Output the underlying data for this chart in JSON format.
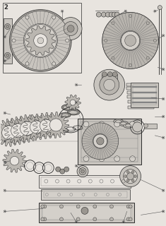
{
  "bg_color": "#e8e4df",
  "line_color": "#2a2a2a",
  "fig_width": 2.35,
  "fig_height": 3.2,
  "dpi": 100,
  "part_color": "#c8c4be",
  "part_color2": "#b8b4ae",
  "part_color3": "#d4d0ca",
  "dark_part": "#9a9690"
}
